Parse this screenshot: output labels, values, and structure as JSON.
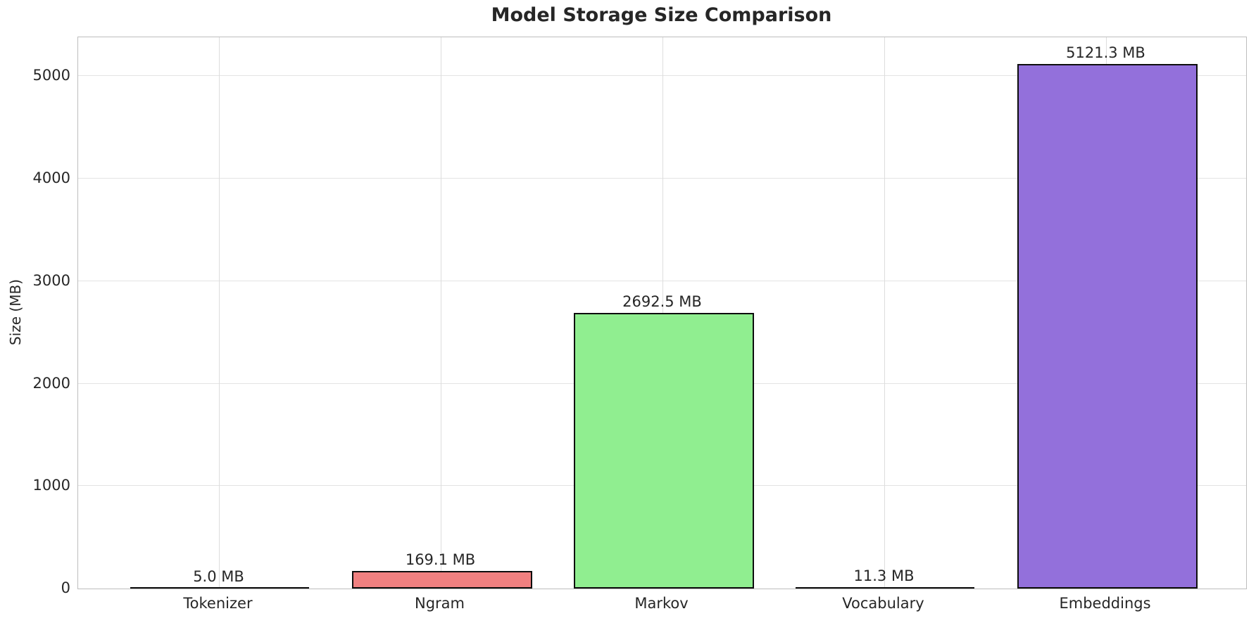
{
  "title": "Model Storage Size Comparison",
  "chart_data": {
    "type": "bar",
    "title": "Model Storage Size Comparison",
    "xlabel": "",
    "ylabel": "Size (MB)",
    "categories": [
      "Tokenizer",
      "Ngram",
      "Markov",
      "Vocabulary",
      "Embeddings"
    ],
    "values": [
      5.0,
      169.1,
      2692.5,
      11.3,
      5121.3
    ],
    "bar_labels": [
      "5.0 MB",
      "169.1 MB",
      "2692.5 MB",
      "11.3 MB",
      "5121.3 MB"
    ],
    "bar_colors": [
      "#87CEEB",
      "#F08080",
      "#90EE90",
      "#FFD700",
      "#9370DB"
    ],
    "bar_edge_color": "#0d0d0d",
    "yticks": [
      0,
      1000,
      2000,
      3000,
      4000,
      5000
    ],
    "ylim": [
      0,
      5380
    ],
    "grid": true,
    "legend_position": "none",
    "background_color": "#ffffff"
  }
}
